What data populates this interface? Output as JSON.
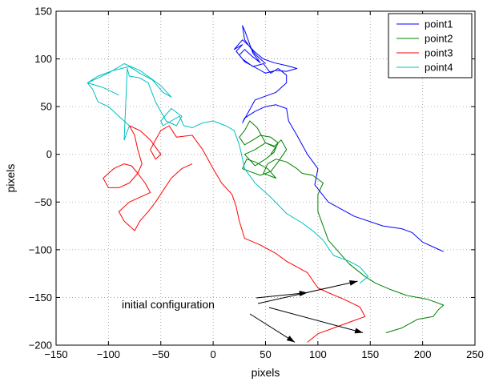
{
  "chart_data": {
    "type": "line",
    "title": "",
    "xlabel": "pixels",
    "ylabel": "pixels",
    "xlim": [
      -150,
      250
    ],
    "ylim": [
      -200,
      150
    ],
    "xticks": [
      -150,
      -100,
      -50,
      0,
      50,
      100,
      150,
      200,
      250
    ],
    "yticks": [
      -200,
      -150,
      -100,
      -50,
      0,
      50,
      100,
      150
    ],
    "grid": true,
    "grid_style": "dotted",
    "legend_position": "top-right",
    "series": [
      {
        "name": "point1",
        "color": "#0000ff",
        "x": [
          220,
          212,
          200,
          190,
          180,
          162,
          135,
          110,
          97,
          100,
          90,
          80,
          72,
          70,
          60,
          50,
          40,
          30,
          28,
          40,
          60,
          70,
          70,
          62,
          55,
          48,
          38,
          28,
          22,
          28,
          20,
          28,
          35,
          40,
          48,
          58,
          70,
          80,
          70,
          60,
          50,
          42,
          30,
          25,
          30,
          38,
          45,
          38,
          30,
          28,
          30,
          40,
          50
        ],
        "y": [
          -102,
          -98,
          -92,
          -82,
          -78,
          -75,
          -65,
          -50,
          -32,
          -15,
          0,
          20,
          35,
          48,
          52,
          50,
          45,
          38,
          33,
          57,
          65,
          75,
          83,
          90,
          85,
          95,
          92,
          100,
          108,
          115,
          110,
          120,
          113,
          107,
          100,
          96,
          93,
          90,
          87,
          88,
          85,
          90,
          97,
          104,
          110,
          102,
          96,
          106,
          130,
          135,
          120,
          105,
          95
        ]
      },
      {
        "name": "point2",
        "color": "#008000",
        "x": [
          165,
          180,
          195,
          210,
          215,
          220,
          205,
          185,
          170,
          155,
          145,
          130,
          110,
          100,
          100,
          105,
          95,
          85,
          80,
          70,
          60,
          52,
          48,
          60,
          52,
          40,
          32,
          28,
          35,
          45,
          55,
          62,
          70,
          65,
          58,
          50,
          42,
          35,
          30,
          25,
          30,
          38,
          45,
          55,
          62,
          58,
          50,
          40,
          30,
          40,
          50,
          60,
          55
        ],
        "y": [
          -187,
          -182,
          -173,
          -170,
          -163,
          -158,
          -152,
          -148,
          -142,
          -135,
          -128,
          -115,
          -90,
          -60,
          -42,
          -30,
          -22,
          -20,
          -15,
          -8,
          -5,
          -10,
          -20,
          -25,
          -15,
          -8,
          -5,
          -15,
          -18,
          -22,
          -18,
          -8,
          5,
          15,
          8,
          12,
          28,
          35,
          25,
          18,
          10,
          15,
          20,
          18,
          12,
          2,
          -5,
          -12,
          0,
          5,
          12,
          8,
          0
        ]
      },
      {
        "name": "point3",
        "color": "#ff0000",
        "x": [
          90,
          100,
          115,
          130,
          145,
          140,
          125,
          110,
          100,
          95,
          90,
          80,
          70,
          60,
          45,
          30,
          25,
          22,
          18,
          8,
          0,
          -10,
          -20,
          -35,
          -42,
          -50,
          -55,
          -60,
          -55,
          -50,
          -60,
          -70,
          -80,
          -75,
          -72,
          -68,
          -72,
          -80,
          -90,
          -100,
          -105,
          -95,
          -85,
          -78,
          -72,
          -65,
          -60,
          -70,
          -80,
          -90,
          -85,
          -75,
          -70,
          -62,
          -55,
          -40,
          -30,
          -20
        ],
        "y": [
          -197,
          -188,
          -182,
          -176,
          -170,
          -160,
          -152,
          -145,
          -140,
          -132,
          -124,
          -118,
          -112,
          -104,
          -95,
          -88,
          -70,
          -55,
          -42,
          -30,
          -15,
          5,
          20,
          18,
          30,
          25,
          15,
          5,
          -5,
          0,
          15,
          25,
          30,
          20,
          5,
          -10,
          -20,
          -30,
          -35,
          -35,
          -25,
          -15,
          -10,
          -12,
          -20,
          -30,
          -40,
          -45,
          -50,
          -60,
          -70,
          -80,
          -70,
          -60,
          -50,
          -25,
          -15,
          -10
        ]
      },
      {
        "name": "point4",
        "color": "#00bfbf",
        "x": [
          140,
          148,
          140,
          130,
          115,
          110,
          105,
          95,
          85,
          70,
          55,
          40,
          30,
          25,
          20,
          12,
          0,
          -10,
          -20,
          -28,
          -32,
          -40,
          -48,
          -50,
          -40,
          -30,
          -35,
          -45,
          -55,
          -62,
          -70,
          -80,
          -82,
          -85,
          -80,
          -90,
          -100,
          -110,
          -115,
          -120,
          -100,
          -85,
          -70,
          -60,
          -50,
          -40,
          -48,
          -58,
          -70,
          -80,
          -95,
          -110,
          -120,
          -105,
          -90
        ],
        "y": [
          -135,
          -128,
          -118,
          -112,
          -106,
          -98,
          -90,
          -80,
          -72,
          -62,
          -45,
          -30,
          -15,
          10,
          25,
          30,
          35,
          33,
          28,
          30,
          40,
          35,
          30,
          35,
          48,
          40,
          30,
          35,
          55,
          75,
          80,
          82,
          90,
          15,
          30,
          40,
          50,
          55,
          68,
          75,
          85,
          95,
          88,
          80,
          72,
          60,
          65,
          78,
          85,
          92,
          88,
          82,
          75,
          70,
          62
        ]
      }
    ],
    "annotation": {
      "text": "initial configuration",
      "arrow_targets": [
        [
          90,
          -145
        ],
        [
          138,
          -133
        ],
        [
          143,
          -187
        ],
        [
          78,
          -197
        ]
      ]
    }
  }
}
